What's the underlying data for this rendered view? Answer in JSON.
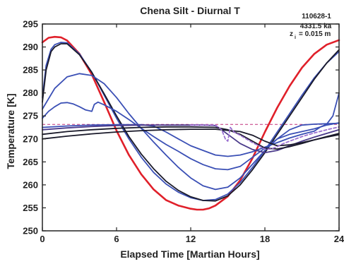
{
  "chart_data": {
    "type": "line",
    "title": "Chena Silt - Diurnal T",
    "xlabel": "Elapsed Time [Martian Hours]",
    "ylabel": "Temperature [K]",
    "xlim": [
      0,
      24
    ],
    "ylim": [
      250,
      295
    ],
    "xticks": [
      "0",
      "6",
      "12",
      "18",
      "24"
    ],
    "yticks": [
      "250",
      "255",
      "260",
      "265",
      "270",
      "275",
      "280",
      "285",
      "290",
      "295"
    ],
    "grid": false,
    "legend": "none",
    "annotations": {
      "run_id": "110628-1",
      "age": "4331.5 ka",
      "depth_symbol": "z",
      "depth_subscript": "i",
      "depth_value": "= 0.015 m"
    },
    "colors": {
      "surface": "#e0202a",
      "depth_profiles": "#3a4fb5",
      "deep_profiles": "#1a1a2a",
      "purple_profiles": "#4a3a8a",
      "freezing_line": "#c0307a",
      "frost_curve": "#9a6fd0"
    },
    "reference_lines": [
      {
        "name": "",
        "y": 273.15,
        "style": "dashed"
      }
    ],
    "series": [
      {
        "color": "surface",
        "x": [
          0,
          0.5,
          1,
          1.5,
          2,
          3,
          4,
          5,
          6,
          7,
          8,
          9,
          10,
          11,
          12,
          12.5,
          13,
          13.5,
          14,
          15,
          16,
          17,
          18,
          19,
          20,
          21,
          22,
          23,
          24
        ],
        "y": [
          291,
          292,
          292.2,
          292.1,
          291.4,
          288.5,
          284,
          278,
          271.8,
          266.5,
          262.3,
          259,
          256.7,
          255.5,
          254.8,
          254.6,
          254.6,
          254.9,
          255.5,
          257.5,
          261,
          265.8,
          271.5,
          276.8,
          281.5,
          285.5,
          288.5,
          290.5,
          291.5
        ]
      },
      {
        "color": "depth_profiles",
        "x": [
          0,
          0.3,
          0.7,
          1,
          1.5,
          2,
          3,
          4,
          5,
          6,
          7,
          8,
          9,
          10,
          11,
          12,
          13,
          14,
          15,
          16,
          17,
          18,
          19,
          20,
          21,
          22,
          23,
          24
        ],
        "y": [
          279,
          286,
          289.5,
          290.5,
          291,
          290.9,
          288.5,
          284.5,
          279.5,
          274.5,
          270,
          266,
          262.7,
          260.2,
          258.4,
          257.2,
          256.6,
          256.8,
          258,
          260.5,
          263.8,
          267.5,
          271.5,
          275.5,
          279.5,
          283.3,
          286.5,
          289
        ]
      },
      {
        "color": "deep_profiles",
        "x": [
          0,
          0.3,
          0.7,
          1,
          1.5,
          2,
          3,
          4,
          5,
          6,
          7,
          8,
          9,
          10,
          11,
          12,
          13,
          14,
          15,
          16,
          17,
          18,
          19,
          20,
          21,
          22,
          23,
          24
        ],
        "y": [
          278,
          285,
          289,
          290,
          290.7,
          290.7,
          288.3,
          284.5,
          279.8,
          275,
          270.5,
          266.7,
          263.5,
          260.8,
          258.8,
          257.4,
          256.6,
          256.5,
          257.6,
          260,
          263.3,
          267,
          271,
          275,
          279,
          283,
          286.5,
          289.4
        ]
      },
      {
        "color": "depth_profiles",
        "x": [
          0,
          1,
          2,
          3,
          4,
          5,
          6,
          7,
          8,
          9,
          10,
          11,
          12,
          13,
          14,
          15,
          16,
          17,
          18,
          19,
          20,
          21,
          22,
          23,
          24
        ],
        "y": [
          276.5,
          281,
          283.5,
          284.2,
          283.8,
          282,
          279,
          275.5,
          272.3,
          269.3,
          266.5,
          263.8,
          261.5,
          259.8,
          259,
          259.5,
          261.5,
          264.5,
          267.5,
          270,
          272,
          273,
          273.2,
          273.3,
          273.4
        ]
      },
      {
        "color": "depth_profiles",
        "x": [
          0,
          0.5,
          1,
          1.5,
          2,
          2.5,
          3,
          3.5,
          4,
          4.2,
          4.5,
          5,
          6,
          7,
          8,
          9,
          10,
          11,
          12,
          13,
          14,
          15,
          16,
          17,
          18,
          18.5,
          19,
          20,
          21,
          22,
          23,
          24
        ],
        "y": [
          274.5,
          276,
          277,
          277.8,
          277.9,
          277.6,
          277,
          276.3,
          276,
          277.5,
          278,
          277.4,
          276,
          274.2,
          272.3,
          270.5,
          268.8,
          267.3,
          265.7,
          264.4,
          263.5,
          263.3,
          264,
          266,
          268,
          269,
          270,
          271,
          271.6,
          272.2,
          273,
          273.5
        ]
      },
      {
        "color": "depth_profiles",
        "x": [
          0,
          2,
          4,
          6,
          8,
          9,
          10,
          11,
          12,
          13,
          14,
          15,
          16,
          17,
          18,
          19,
          20,
          21,
          22,
          22.5,
          23,
          23.5,
          24
        ],
        "y": [
          272.5,
          272.8,
          273,
          273.1,
          273.1,
          272.8,
          271.5,
          270,
          268.5,
          267.5,
          266.5,
          266.2,
          266.5,
          267.2,
          268.2,
          269.2,
          270.2,
          271,
          271.7,
          272.6,
          273.2,
          275,
          280
        ]
      },
      {
        "color": "purple_profiles",
        "x": [
          0,
          2,
          4,
          6,
          8,
          10,
          12,
          13,
          14,
          14.5,
          15,
          15.5,
          16,
          17,
          18,
          19,
          20,
          21,
          22,
          23,
          24
        ],
        "y": [
          272,
          272.4,
          272.7,
          272.9,
          273,
          273,
          273,
          273,
          272.9,
          272,
          271,
          270,
          269,
          267.7,
          267,
          267.5,
          268.5,
          269.5,
          270.4,
          271.2,
          272
        ]
      },
      {
        "color": "deep_profiles",
        "x": [
          0,
          2,
          4,
          6,
          8,
          10,
          12,
          14,
          15,
          16,
          17,
          18,
          19,
          20,
          21,
          22,
          23,
          24
        ],
        "y": [
          271,
          271.6,
          272,
          272.3,
          272.5,
          272.6,
          272.6,
          272.5,
          272,
          271,
          269.5,
          268,
          267.8,
          268.3,
          269,
          269.8,
          270.5,
          271.2
        ]
      },
      {
        "color": "deep_profiles",
        "x": [
          0,
          2,
          4,
          6,
          8,
          10,
          12,
          14,
          16,
          17,
          18,
          19,
          20,
          21,
          22,
          23,
          24
        ],
        "y": [
          270,
          270.6,
          271.1,
          271.5,
          271.8,
          272,
          272.1,
          272.1,
          271.6,
          270.8,
          269.5,
          268.5,
          268.7,
          269.2,
          269.8,
          270.4,
          270.9
        ]
      },
      {
        "color": "frost_curve",
        "x": [
          12,
          13,
          14,
          14.5,
          14.8,
          15,
          15.2,
          15.5,
          16,
          16.5,
          17,
          17.5,
          18,
          18.5,
          19,
          19.5,
          20,
          21,
          22,
          23,
          24
        ],
        "y": [
          273,
          273,
          273,
          272,
          270,
          269.5,
          272.5,
          271.5,
          270.8,
          270,
          269.2,
          268.5,
          267.8,
          267.8,
          268.3,
          269,
          269.5,
          270.5,
          271.3,
          272,
          272.6
        ]
      }
    ]
  }
}
